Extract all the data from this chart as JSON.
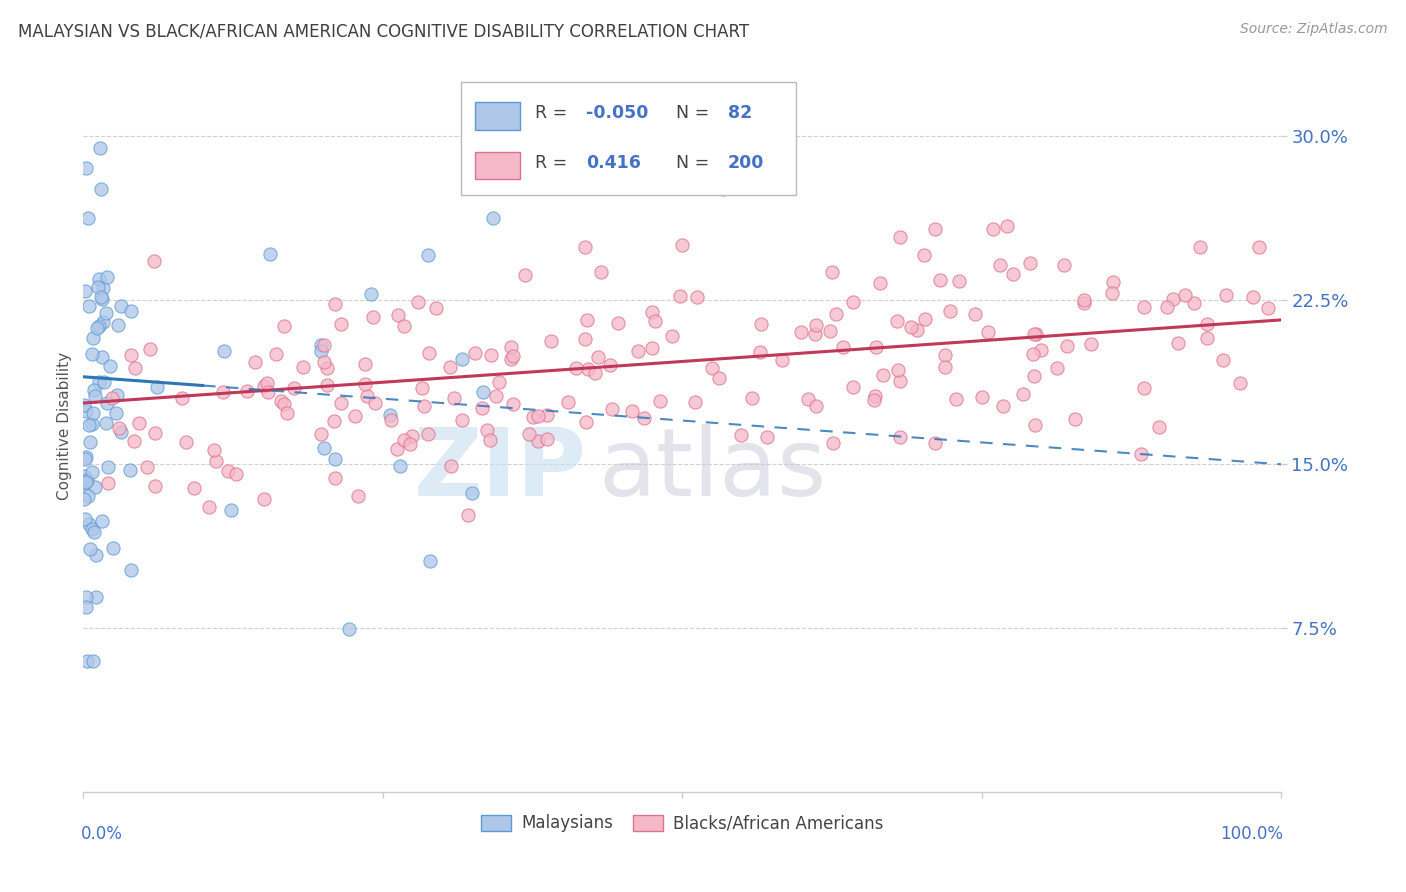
{
  "title": "MALAYSIAN VS BLACK/AFRICAN AMERICAN COGNITIVE DISABILITY CORRELATION CHART",
  "source": "Source: ZipAtlas.com",
  "ylabel": "Cognitive Disability",
  "ytick_labels": [
    "7.5%",
    "15.0%",
    "22.5%",
    "30.0%"
  ],
  "ytick_values": [
    0.075,
    0.15,
    0.225,
    0.3
  ],
  "xlim": [
    0.0,
    1.0
  ],
  "ylim": [
    0.0,
    0.335
  ],
  "legend_r_blue": "-0.050",
  "legend_n_blue": "82",
  "legend_r_pink": "0.416",
  "legend_n_pink": "200",
  "blue_fill_color": "#aec6e8",
  "blue_edge_color": "#5b9bd5",
  "pink_fill_color": "#f4b8c8",
  "pink_edge_color": "#e07090",
  "blue_line_color": "#2e75b6",
  "pink_line_color": "#c0385a",
  "title_color": "#404040",
  "source_color": "#999999",
  "axis_color": "#4472C4",
  "label_color": "#555555",
  "grid_color": "#cccccc",
  "watermark_zip_color": "#c5dff0",
  "watermark_atlas_color": "#c8c8d8"
}
